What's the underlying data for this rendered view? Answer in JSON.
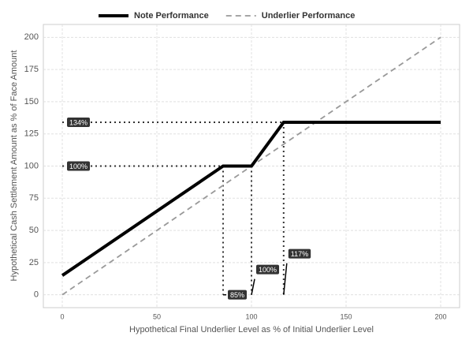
{
  "chart_data": {
    "type": "line",
    "x_label": "Hypothetical Final Underlier Level as % of Initial Underlier Level",
    "y_label": "Hypothetical Cash Settlement Amount as % of Face Amount",
    "series": [
      {
        "name": "Note Performance",
        "color": "#000000",
        "style": "solid",
        "x": [
          0,
          85,
          100,
          117,
          200
        ],
        "values": [
          15,
          100,
          100,
          134,
          134
        ]
      },
      {
        "name": "Underlier Performance",
        "color": "#999999",
        "style": "dashed",
        "x": [
          0,
          200
        ],
        "values": [
          0,
          200
        ]
      }
    ],
    "annotations": [
      {
        "axis": "y",
        "value": 134,
        "label": "134%"
      },
      {
        "axis": "y",
        "value": 100,
        "label": "100%"
      },
      {
        "axis": "x",
        "value": 85,
        "label": "85%"
      },
      {
        "axis": "x",
        "value": 100,
        "label": "100%"
      },
      {
        "axis": "x",
        "value": 117,
        "label": "117%"
      }
    ],
    "xlim": [
      -10,
      210
    ],
    "xticks": [
      0,
      50,
      100,
      150,
      200
    ],
    "ylim": [
      -10,
      210
    ],
    "yticks": [
      0,
      25,
      50,
      75,
      100,
      125,
      150,
      175,
      200
    ],
    "grid": true,
    "legend": "top"
  }
}
